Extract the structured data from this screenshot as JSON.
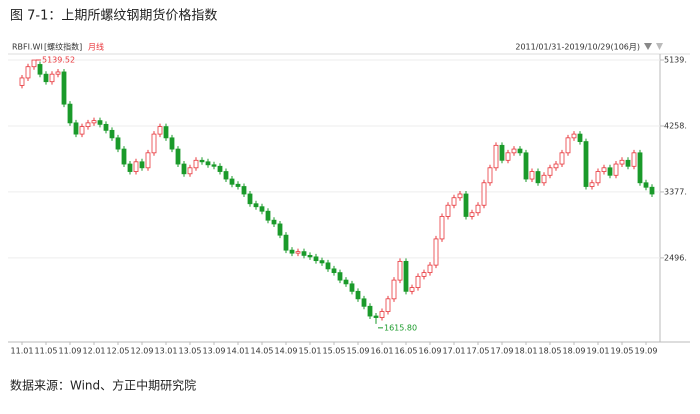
{
  "figure_title": "图 7-1：上期所螺纹钢期货价格指数",
  "source": "数据来源：Wind、方正中期研究院",
  "chart_data": {
    "type": "candlestick",
    "symbol": "RBFI.WI",
    "symbol_name": "[螺纹指数]",
    "period": "月线",
    "date_range": "2011/01/31-2019/10/29(106月)",
    "annotations": [
      "5139.52",
      "1615.80"
    ],
    "up_color": "#e8383d",
    "down_color": "#1a9a2a",
    "grid": true,
    "ylim": [
      1400,
      5340
    ],
    "yticks": [
      {
        "value": 5139.52,
        "label": "5139."
      },
      {
        "value": 4258.59,
        "label": "4258."
      },
      {
        "value": 3377.66,
        "label": "3377."
      },
      {
        "value": 2496.73,
        "label": "2496."
      }
    ],
    "categories": [
      "11.01",
      null,
      null,
      null,
      "11.05",
      null,
      null,
      null,
      "11.09",
      null,
      null,
      null,
      "12.01",
      null,
      null,
      null,
      "12.05",
      null,
      null,
      null,
      "12.09",
      null,
      null,
      null,
      "13.01",
      null,
      null,
      null,
      "13.05",
      null,
      null,
      null,
      "13.09",
      null,
      null,
      null,
      "14.01",
      null,
      null,
      null,
      "14.05",
      null,
      null,
      null,
      "14.09",
      null,
      null,
      null,
      "15.01",
      null,
      null,
      null,
      "15.05",
      null,
      null,
      null,
      "15.09",
      null,
      null,
      null,
      "16.01",
      null,
      null,
      null,
      "16.05",
      null,
      null,
      null,
      "16.09",
      null,
      null,
      null,
      "17.01",
      null,
      null,
      null,
      "17.05",
      null,
      null,
      null,
      "17.09",
      null,
      null,
      null,
      "18.01",
      null,
      null,
      null,
      "18.05",
      null,
      null,
      null,
      "18.09",
      null,
      null,
      null,
      "19.01",
      null,
      null,
      null,
      "19.05",
      null,
      null,
      null,
      "19.09",
      null
    ],
    "open": [
      4800,
      4900,
      5050,
      5080,
      4950,
      4850,
      4950,
      4980,
      4550,
      4300,
      4150,
      4250,
      4300,
      4330,
      4280,
      4200,
      4100,
      3950,
      3750,
      3650,
      3780,
      3700,
      3900,
      4150,
      4250,
      4100,
      3950,
      3750,
      3620,
      3700,
      3800,
      3780,
      3740,
      3720,
      3650,
      3550,
      3480,
      3450,
      3350,
      3220,
      3180,
      3120,
      3000,
      2950,
      2800,
      2600,
      2560,
      2580,
      2530,
      2510,
      2460,
      2430,
      2350,
      2300,
      2200,
      2150,
      2050,
      1950,
      1850,
      1720,
      1700,
      1780,
      1950,
      2200,
      2450,
      2050,
      2100,
      2250,
      2300,
      2400,
      2750,
      3050,
      3200,
      3300,
      3350,
      3050,
      3100,
      3200,
      3500,
      3700,
      4000,
      3800,
      3900,
      3950,
      3900,
      3550,
      3650,
      3500,
      3600,
      3700,
      3750,
      3900,
      4100,
      4150,
      4050,
      3450,
      3500,
      3650,
      3700,
      3600,
      3750,
      3800,
      3720,
      3900,
      3500,
      3440
    ],
    "high": [
      4940,
      5090,
      5139.52,
      5120,
      4990,
      4990,
      5020,
      5020,
      4590,
      4340,
      4290,
      4340,
      4370,
      4370,
      4320,
      4240,
      4140,
      3990,
      3790,
      3820,
      3820,
      3940,
      4190,
      4290,
      4290,
      4140,
      3990,
      3790,
      3740,
      3840,
      3840,
      3820,
      3780,
      3760,
      3690,
      3590,
      3520,
      3490,
      3390,
      3260,
      3220,
      3160,
      3040,
      2990,
      2840,
      2640,
      2620,
      2620,
      2570,
      2550,
      2500,
      2470,
      2390,
      2340,
      2240,
      2190,
      2090,
      1990,
      1890,
      1760,
      1820,
      1990,
      2240,
      2490,
      2490,
      2140,
      2290,
      2340,
      2440,
      2790,
      3090,
      3240,
      3340,
      3390,
      3390,
      3140,
      3240,
      3540,
      3740,
      4040,
      4040,
      3940,
      3990,
      3990,
      3940,
      3690,
      3690,
      3640,
      3740,
      3790,
      3940,
      4140,
      4190,
      4190,
      4090,
      3540,
      3690,
      3740,
      3740,
      3790,
      3840,
      3840,
      3940,
      3940,
      3540,
      3480
    ],
    "low": [
      4760,
      4860,
      5010,
      4910,
      4810,
      4810,
      4910,
      4510,
      4260,
      4110,
      4110,
      4210,
      4260,
      4240,
      4160,
      4060,
      3910,
      3710,
      3610,
      3610,
      3660,
      3660,
      3860,
      4110,
      4060,
      3910,
      3710,
      3580,
      3580,
      3660,
      3740,
      3700,
      3680,
      3610,
      3510,
      3440,
      3410,
      3310,
      3180,
      3140,
      3080,
      2960,
      2910,
      2760,
      2560,
      2520,
      2520,
      2490,
      2470,
      2420,
      2390,
      2310,
      2260,
      2160,
      2110,
      2010,
      1910,
      1810,
      1680,
      1615.8,
      1660,
      1740,
      1910,
      2160,
      2010,
      2010,
      2060,
      2210,
      2260,
      2360,
      2710,
      3010,
      3160,
      3260,
      3010,
      3010,
      3060,
      3160,
      3460,
      3660,
      3760,
      3760,
      3860,
      3860,
      3510,
      3510,
      3460,
      3460,
      3560,
      3660,
      3710,
      3860,
      4060,
      4010,
      3410,
      3410,
      3460,
      3610,
      3560,
      3560,
      3710,
      3680,
      3680,
      3460,
      3400,
      3310
    ],
    "close": [
      4900,
      5050,
      5139,
      4950,
      4850,
      4950,
      4980,
      4550,
      4300,
      4150,
      4250,
      4300,
      4330,
      4280,
      4200,
      4100,
      3950,
      3750,
      3650,
      3780,
      3700,
      3900,
      4150,
      4250,
      4100,
      3950,
      3750,
      3620,
      3700,
      3800,
      3780,
      3740,
      3720,
      3650,
      3550,
      3480,
      3450,
      3350,
      3220,
      3180,
      3120,
      3000,
      2950,
      2800,
      2600,
      2560,
      2580,
      2530,
      2510,
      2460,
      2430,
      2350,
      2300,
      2200,
      2150,
      2050,
      1950,
      1850,
      1720,
      1700,
      1780,
      1950,
      2200,
      2450,
      2050,
      2100,
      2250,
      2300,
      2400,
      2750,
      3050,
      3200,
      3300,
      3350,
      3050,
      3100,
      3200,
      3500,
      3700,
      4000,
      3800,
      3900,
      3950,
      3900,
      3550,
      3650,
      3500,
      3600,
      3700,
      3750,
      3900,
      4100,
      4150,
      4050,
      3450,
      3500,
      3650,
      3700,
      3600,
      3750,
      3800,
      3720,
      3900,
      3500,
      3440,
      3350
    ]
  }
}
